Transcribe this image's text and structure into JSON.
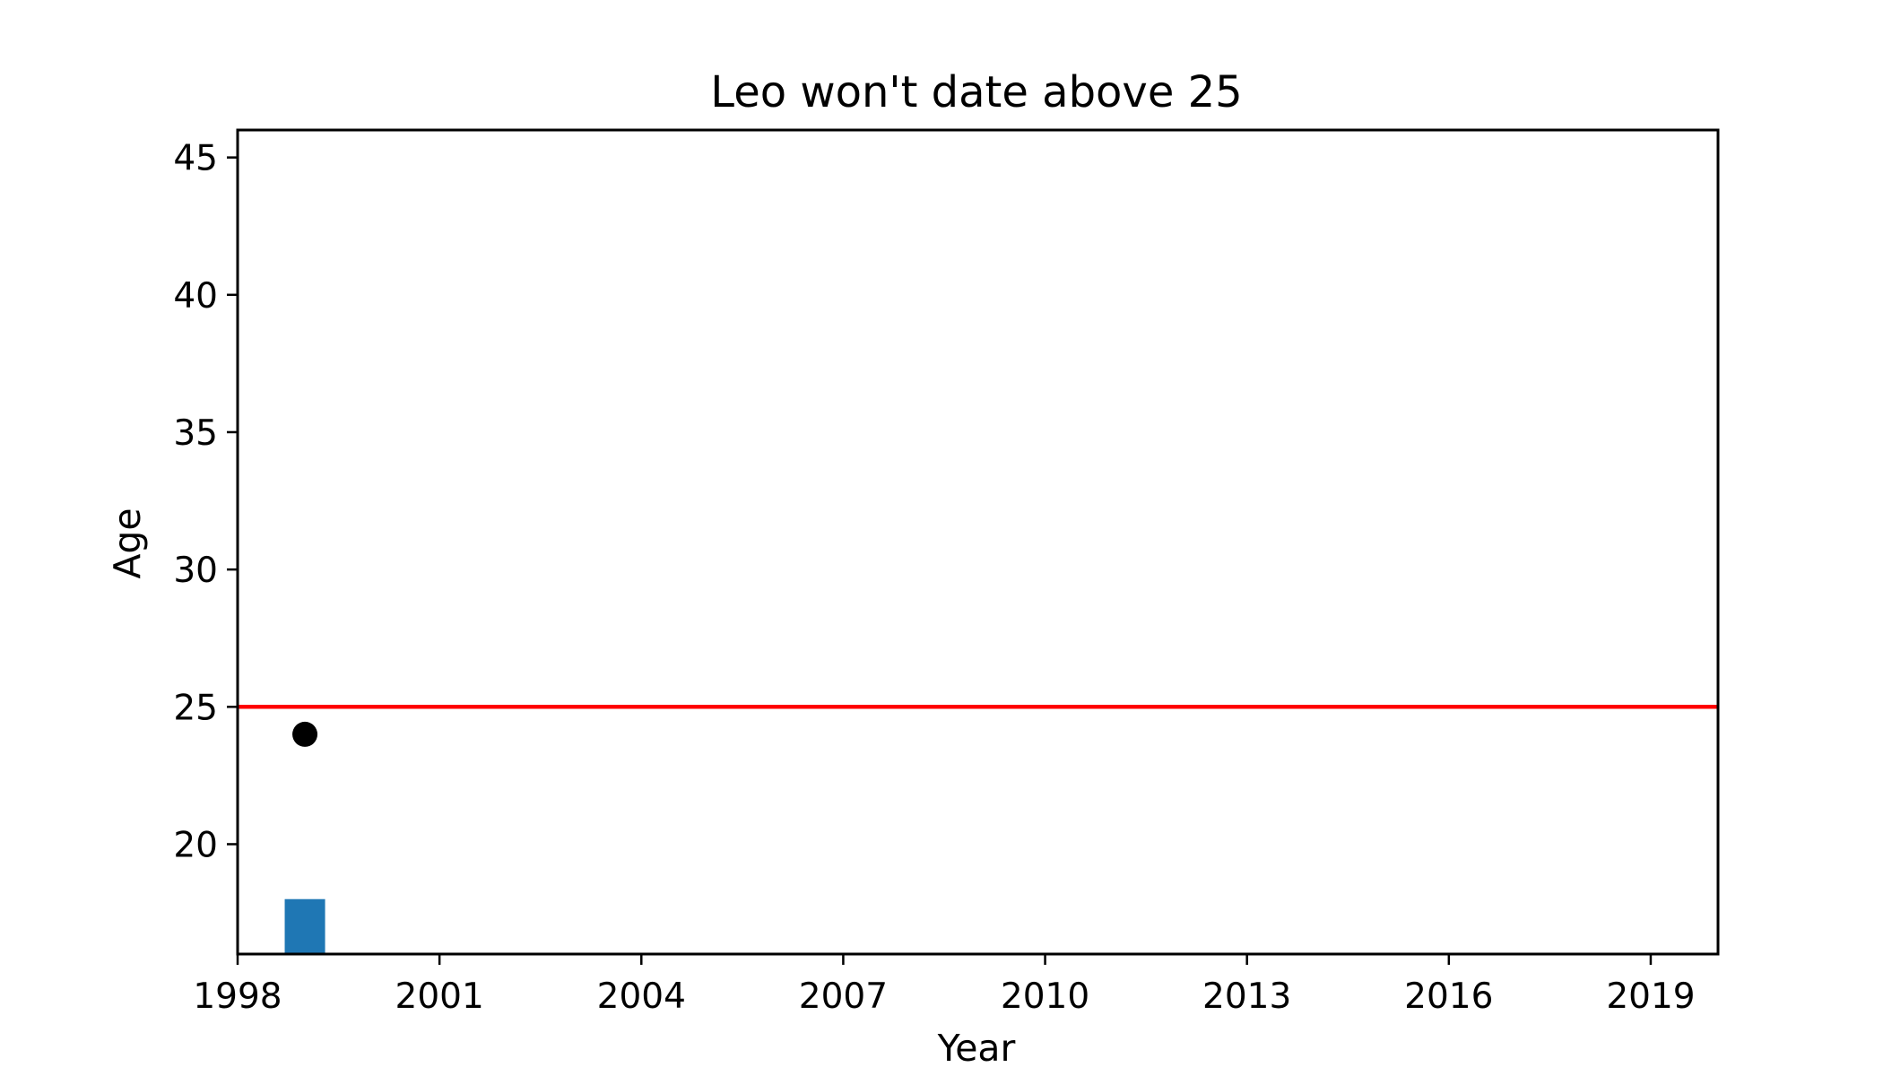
{
  "chart_data": {
    "type": "bar",
    "title": "Leo won't date above 25",
    "xlabel": "Year",
    "ylabel": "Age",
    "xlim": [
      1998,
      2020
    ],
    "ylim": [
      16,
      46
    ],
    "xticks": [
      1998,
      2001,
      2004,
      2007,
      2010,
      2013,
      2016,
      2019
    ],
    "yticks": [
      20,
      25,
      30,
      35,
      40,
      45
    ],
    "grid": false,
    "series": [
      {
        "kind": "bar",
        "x": [
          1999
        ],
        "values": [
          18
        ],
        "color": "#1f77b4"
      },
      {
        "kind": "scatter",
        "x": [
          1999
        ],
        "values": [
          24
        ],
        "color": "#000000"
      }
    ],
    "reference_line": {
      "y": 25,
      "color": "#ff0000"
    }
  }
}
